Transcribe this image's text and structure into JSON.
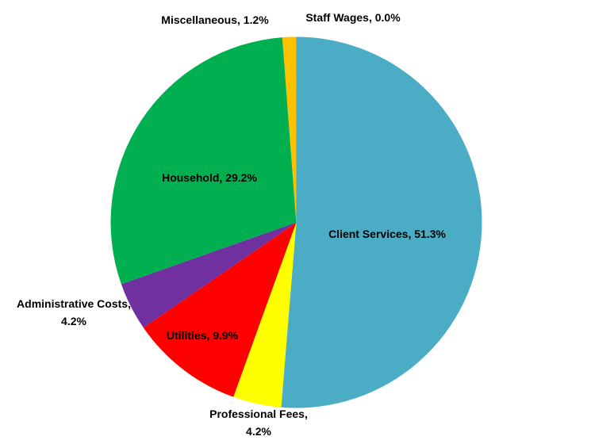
{
  "chart_data": {
    "type": "pie",
    "title": "",
    "slices": [
      {
        "label": "Client Services",
        "value": 51.3,
        "display": "Client Services, 51.3%",
        "color": "#4BACC6"
      },
      {
        "label": "Professional Fees",
        "value": 4.2,
        "display": "Professional Fees, 4.2%",
        "color": "#FFFF00"
      },
      {
        "label": "Utilities",
        "value": 9.9,
        "display": "Utilities, 9.9%",
        "color": "#FF0000"
      },
      {
        "label": "Administrative Costs",
        "value": 4.2,
        "display": "Administrative Costs, 4.2%",
        "color": "#7030A0"
      },
      {
        "label": "Household",
        "value": 29.2,
        "display": "Household, 29.2%",
        "color": "#00B050"
      },
      {
        "label": "Miscellaneous",
        "value": 1.2,
        "display": "Miscellaneous, 1.2%",
        "color": "#FFC000"
      },
      {
        "label": "Staff Wages",
        "value": 0.0,
        "display": "Staff Wages, 0.0%",
        "color": "#1F3864"
      }
    ],
    "legend": "none",
    "data_labels": "category-and-percent"
  }
}
